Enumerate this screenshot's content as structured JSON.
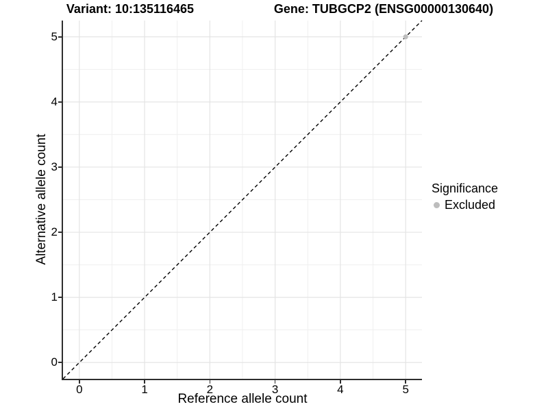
{
  "header": {
    "variant_title": "Variant: 10:135116465",
    "gene_title": "Gene: TUBGCP2 (ENSG00000130640)"
  },
  "chart_data": {
    "type": "scatter",
    "titles": [
      "Variant: 10:135116465",
      "Gene: TUBGCP2 (ENSG00000130640)"
    ],
    "xlabel": "Reference allele count",
    "ylabel": "Alternative allele count",
    "xlim": [
      -0.25,
      5.25
    ],
    "ylim": [
      -0.25,
      5.25
    ],
    "x_ticks": [
      0,
      1,
      2,
      3,
      4,
      5
    ],
    "y_ticks": [
      0,
      1,
      2,
      3,
      4,
      5
    ],
    "x_minor_ticks": [
      0.5,
      1.5,
      2.5,
      3.5,
      4.5
    ],
    "y_minor_ticks": [
      0.5,
      1.5,
      2.5,
      3.5,
      4.5
    ],
    "grid": {
      "major": true,
      "minor": true
    },
    "points": [
      {
        "x": 5,
        "y": 5,
        "significance": "Excluded",
        "color": "#bdbdbd"
      }
    ],
    "identity_line": {
      "equation": "y = x",
      "style": "dashed",
      "color": "#000000"
    },
    "legend": {
      "position": "right",
      "title": "Significance",
      "entries": [
        {
          "label": "Excluded",
          "color": "#bdbdbd",
          "marker": "circle"
        }
      ]
    }
  },
  "colors": {
    "background": "#ffffff",
    "axis": "#2d2d2d",
    "grid_major": "#e4e4e4",
    "grid_minor": "#efefef",
    "text": "#000000"
  }
}
